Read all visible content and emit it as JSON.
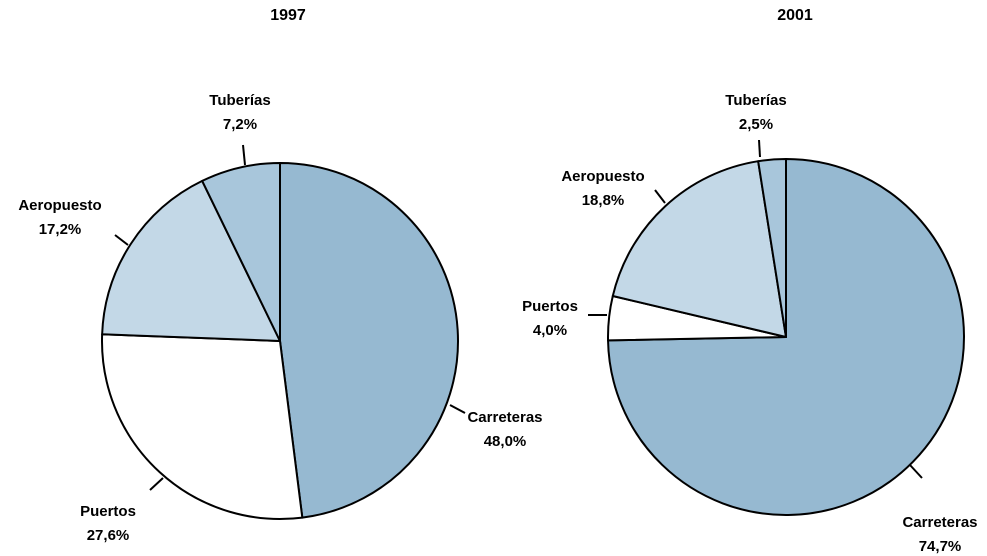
{
  "chart_data": [
    {
      "type": "pie",
      "title": "1997",
      "categories": [
        "Carreteras",
        "Puertos",
        "Aeropuesto",
        "Tuberías"
      ],
      "values": [
        48.0,
        27.6,
        17.2,
        7.2
      ],
      "value_labels": [
        "48,0%",
        "27,6%",
        "17,2%",
        "7,2%"
      ],
      "colors": [
        "#96b9d1",
        "#ffffff",
        "#c3d8e7",
        "#a8c6db"
      ]
    },
    {
      "type": "pie",
      "title": "2001",
      "categories": [
        "Carreteras",
        "Puertos",
        "Aeropuesto",
        "Tuberías"
      ],
      "values": [
        74.7,
        4.0,
        18.8,
        2.5
      ],
      "value_labels": [
        "74,7%",
        "4,0%",
        "18,8%",
        "2,5%"
      ],
      "colors": [
        "#96b9d1",
        "#ffffff",
        "#c3d8e7",
        "#a8c6db"
      ]
    }
  ]
}
